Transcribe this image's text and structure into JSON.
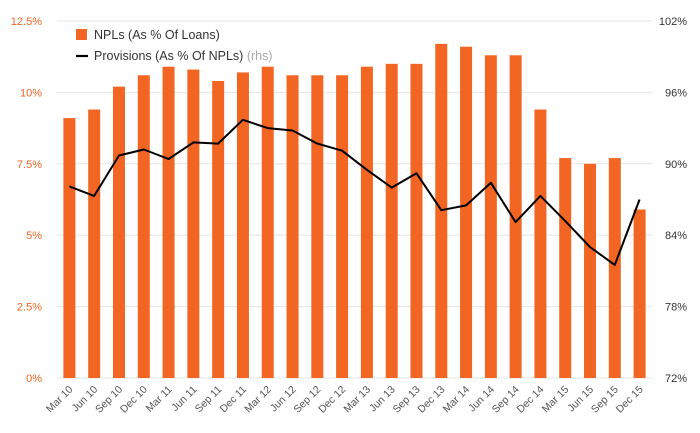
{
  "chart_data": {
    "type": "bar",
    "categories": [
      "Mar 10",
      "Jun 10",
      "Sep 10",
      "Dec 10",
      "Mar 11",
      "Jun 11",
      "Sep 11",
      "Dec 11",
      "Mar 12",
      "Jun 12",
      "Sep 12",
      "Dec 12",
      "Mar 13",
      "Jun 13",
      "Sep 13",
      "Dec 13",
      "Mar 14",
      "Jun 14",
      "Sep 14",
      "Dec 14",
      "Mar 15",
      "Jun 15",
      "Sep 15",
      "Dec 15"
    ],
    "series": [
      {
        "name": "NPLs (As % Of Loans)",
        "type": "bar",
        "axis": "left",
        "color": "#f26522",
        "values": [
          9.1,
          9.4,
          10.2,
          10.6,
          10.9,
          10.8,
          10.4,
          10.7,
          10.9,
          10.6,
          10.6,
          10.6,
          10.9,
          11.0,
          11.0,
          11.7,
          11.6,
          11.3,
          11.3,
          9.4,
          7.7,
          7.5,
          7.7,
          5.9
        ]
      },
      {
        "name": "Provisions (As % Of NPLs)",
        "name_suffix": "(rhs)",
        "type": "line",
        "axis": "right",
        "color": "#000000",
        "values": [
          88.1,
          87.3,
          90.7,
          91.2,
          90.4,
          91.8,
          91.7,
          93.7,
          93.0,
          92.8,
          91.7,
          91.1,
          89.5,
          88.0,
          89.2,
          86.1,
          86.5,
          88.4,
          85.1,
          87.3,
          85.2,
          83.0,
          81.5,
          87.0
        ]
      }
    ],
    "y_left": {
      "min": 0,
      "max": 12.5,
      "ticks": [
        0,
        2.5,
        5,
        7.5,
        10,
        12.5
      ],
      "tick_labels": [
        "0%",
        "2.5%",
        "5%",
        "7.5%",
        "10%",
        "12.5%"
      ],
      "color": "#f26522"
    },
    "y_right": {
      "min": 72,
      "max": 102,
      "ticks": [
        72,
        78,
        84,
        90,
        96,
        102
      ],
      "tick_labels": [
        "72%",
        "78%",
        "84%",
        "90%",
        "96%",
        "102%"
      ]
    },
    "grid": true,
    "legend_position": "top-left"
  }
}
